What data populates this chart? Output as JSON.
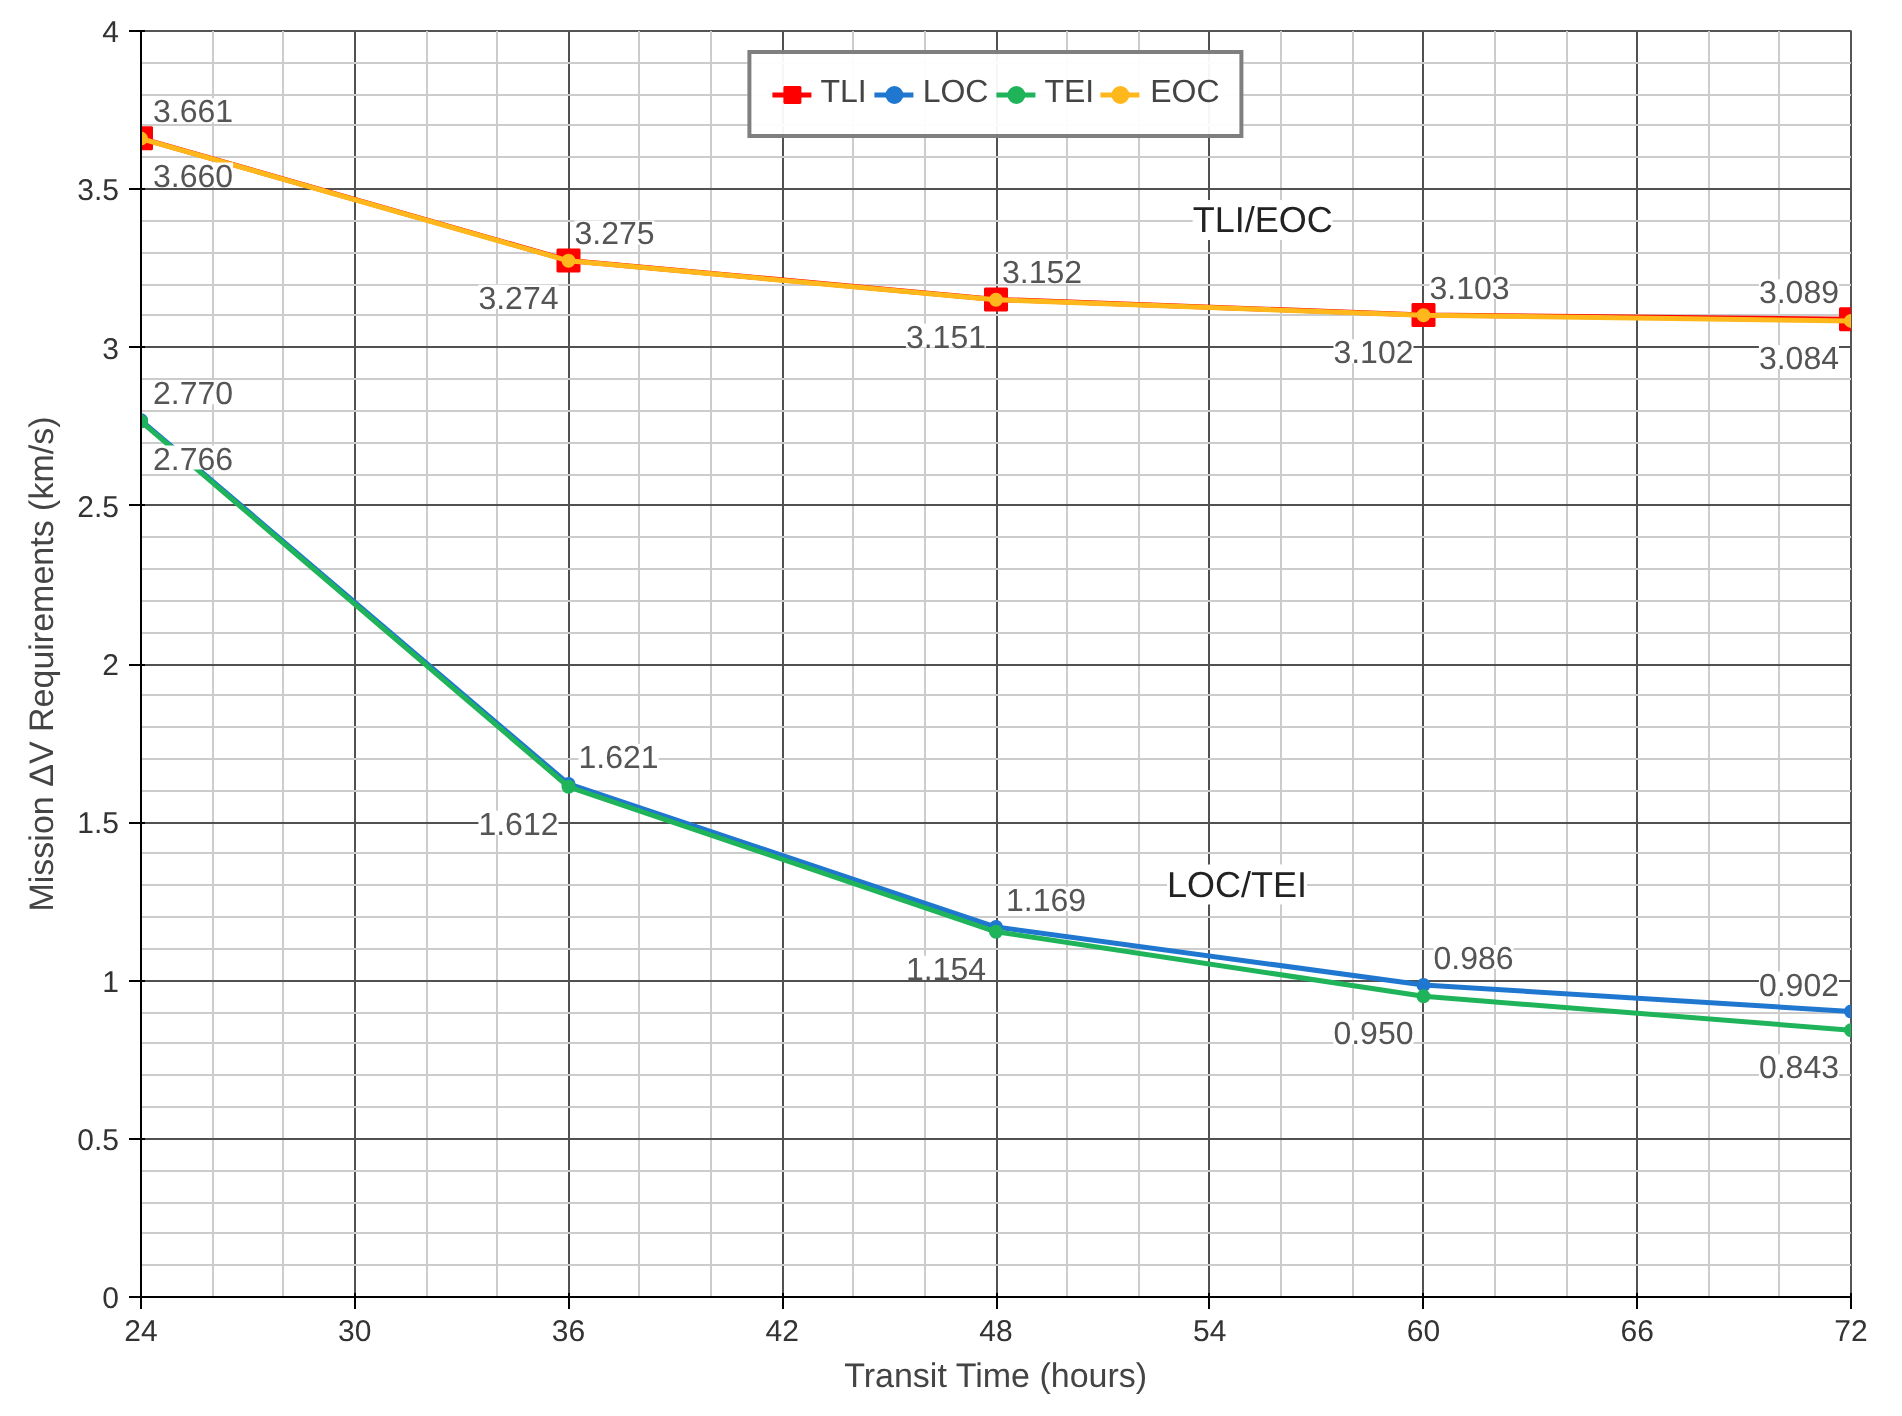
{
  "chart_data": {
    "type": "line",
    "xlabel": "Transit Time (hours)",
    "ylabel": "Mission ΔV Requirements (km/s)",
    "x": [
      24,
      36,
      48,
      60,
      72
    ],
    "series": [
      {
        "name": "TLI",
        "color": "#ff0000",
        "marker": "square",
        "values": [
          3.661,
          3.275,
          3.152,
          3.103,
          3.089
        ],
        "value_labels": [
          "3.661",
          "3.275",
          "3.152",
          "3.103",
          "3.089"
        ]
      },
      {
        "name": "LOC",
        "color": "#1f77d0",
        "marker": "circle",
        "values": [
          2.77,
          1.621,
          1.169,
          0.986,
          0.902
        ],
        "value_labels": [
          "2.770",
          "1.621",
          "1.169",
          "0.986",
          "0.902"
        ]
      },
      {
        "name": "TEI",
        "color": "#1fb45a",
        "marker": "circle",
        "values": [
          2.766,
          1.612,
          1.154,
          0.95,
          0.843
        ],
        "value_labels": [
          "2.766",
          "1.612",
          "1.154",
          "0.950",
          "0.843"
        ]
      },
      {
        "name": "EOC",
        "color": "#ffb81c",
        "marker": "circle",
        "values": [
          3.66,
          3.274,
          3.151,
          3.102,
          3.084
        ],
        "value_labels": [
          "3.660",
          "3.274",
          "3.151",
          "3.102",
          "3.084"
        ]
      }
    ],
    "xlim": [
      24,
      72
    ],
    "xticks": [
      24,
      30,
      36,
      42,
      48,
      54,
      60,
      66,
      72
    ],
    "ylim": [
      0,
      4
    ],
    "yticks": [
      0,
      0.5,
      1,
      1.5,
      2,
      2.5,
      3,
      3.5,
      4
    ],
    "grid": true,
    "legend": "top",
    "line_style": "solid",
    "annotations": [
      "TLI/EOC",
      "LOC/TEI"
    ]
  }
}
